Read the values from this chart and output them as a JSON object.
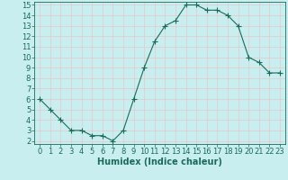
{
  "x": [
    0,
    1,
    2,
    3,
    4,
    5,
    6,
    7,
    8,
    9,
    10,
    11,
    12,
    13,
    14,
    15,
    16,
    17,
    18,
    19,
    20,
    21,
    22,
    23
  ],
  "y": [
    6,
    5,
    4,
    3,
    3,
    2.5,
    2.5,
    2,
    3,
    6,
    9,
    11.5,
    13,
    13.5,
    15,
    15,
    14.5,
    14.5,
    14,
    13,
    10,
    9.5,
    8.5,
    8.5
  ],
  "xlabel": "Humidex (Indice chaleur)",
  "xlim_min": -0.5,
  "xlim_max": 23.5,
  "ylim_min": 1.7,
  "ylim_max": 15.3,
  "yticks": [
    2,
    3,
    4,
    5,
    6,
    7,
    8,
    9,
    10,
    11,
    12,
    13,
    14,
    15
  ],
  "xticks": [
    0,
    1,
    2,
    3,
    4,
    5,
    6,
    7,
    8,
    9,
    10,
    11,
    12,
    13,
    14,
    15,
    16,
    17,
    18,
    19,
    20,
    21,
    22,
    23
  ],
  "line_color": "#1a6b5a",
  "marker": "+",
  "bg_color": "#c8eef0",
  "grid_color": "#e8c8c8",
  "axis_bg": "#c8eef0",
  "label_color": "#1a6b5a",
  "tick_color": "#1a6b5a",
  "font_size": 6,
  "xlabel_fontsize": 7,
  "marker_size": 4,
  "line_width": 0.8
}
